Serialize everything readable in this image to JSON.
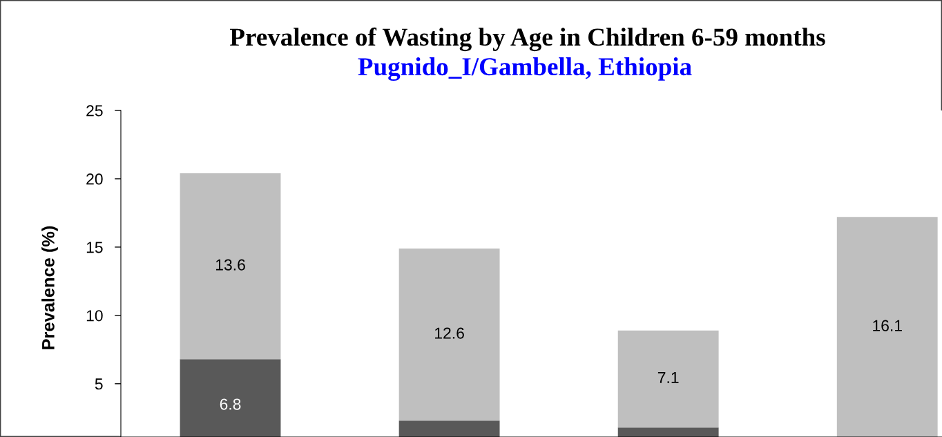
{
  "chart_data": {
    "type": "bar",
    "title": "Prevalence of Wasting by Age in Children 6-59 months",
    "subtitle": "Pugnido_I/Gambella, Ethiopia",
    "ylabel": "Prevalence (%)",
    "categories": [
      null,
      null,
      null,
      null
    ],
    "stacked": true,
    "series": [
      {
        "color": "#595959",
        "values": [
          6.8,
          2.3,
          1.8,
          1.1
        ],
        "value_labels": [
          "6.8",
          null,
          null,
          null
        ]
      },
      {
        "color": "#bfbfbf",
        "values": [
          13.6,
          12.6,
          7.1,
          16.1
        ],
        "value_labels": [
          "13.6",
          "12.6",
          "7.1",
          "16.1"
        ]
      }
    ],
    "ylim": [
      1.1,
      25
    ],
    "yticks": [
      5,
      10,
      15,
      20,
      25
    ],
    "tick_labels": "y",
    "grid": false
  }
}
